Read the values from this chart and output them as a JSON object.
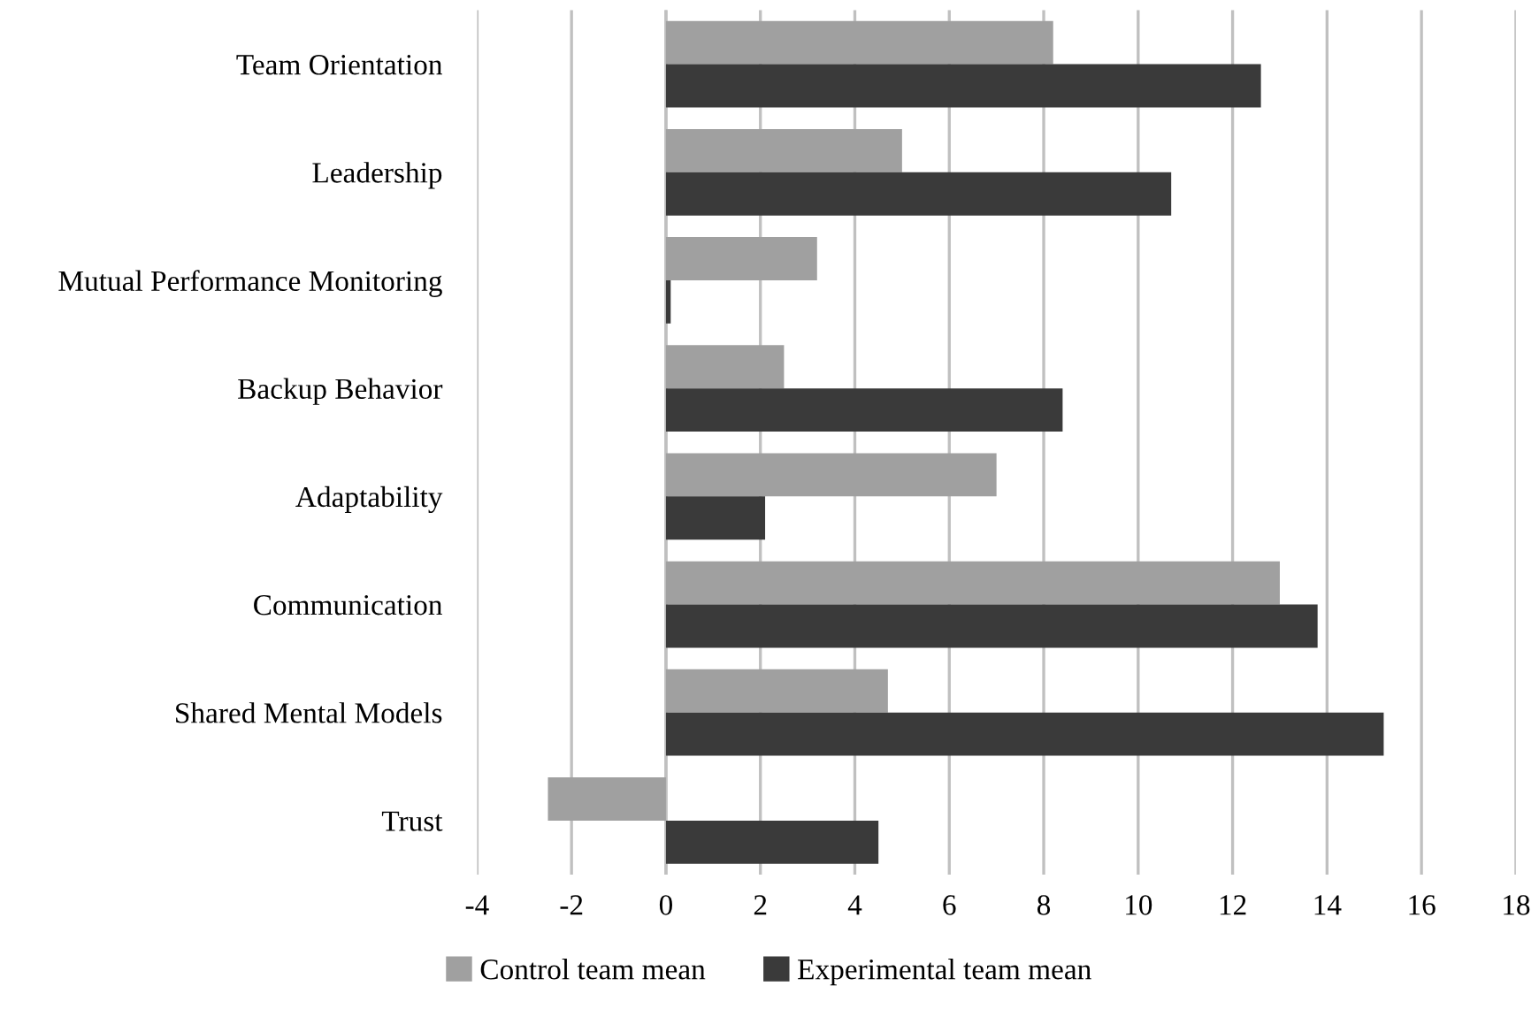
{
  "chart_data": {
    "type": "bar",
    "orientation": "horizontal",
    "categories": [
      "Team Orientation",
      "Leadership",
      "Mutual Performance Monitoring",
      "Backup Behavior",
      "Adaptability",
      "Communication",
      "Shared Mental Models",
      "Trust"
    ],
    "series": [
      {
        "name": "Control team mean",
        "color": "#a0a0a0",
        "values": [
          8.2,
          5.0,
          3.2,
          2.5,
          7.0,
          13.0,
          4.7,
          -2.5
        ]
      },
      {
        "name": "Experimental team mean",
        "color": "#3a3a3a",
        "values": [
          12.6,
          10.7,
          0.1,
          8.4,
          2.1,
          13.8,
          15.2,
          4.5
        ]
      }
    ],
    "xlim": [
      -4,
      18
    ],
    "xticks": [
      -4,
      -2,
      0,
      2,
      4,
      6,
      8,
      10,
      12,
      14,
      16,
      18
    ],
    "grid": "x",
    "legend": "bottom"
  }
}
